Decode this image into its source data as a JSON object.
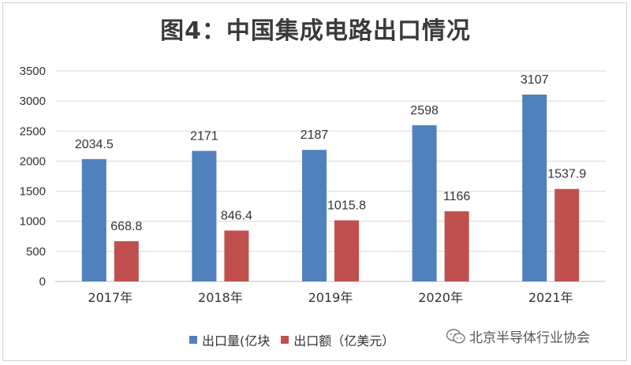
{
  "chart_data": {
    "type": "bar",
    "title": "图4：中国集成电路出口情况",
    "categories": [
      "2017年",
      "2018年",
      "2019年",
      "2020年",
      "2021年"
    ],
    "series": [
      {
        "name": "出口量(亿块",
        "color": "#4f81bd",
        "values": [
          2034.5,
          2171,
          2187,
          2598,
          3107
        ]
      },
      {
        "name": "出口额（亿美元）",
        "color": "#c0504d",
        "values": [
          668.8,
          846.4,
          1015.8,
          1166,
          1537.9
        ]
      }
    ],
    "ylim": [
      0,
      3500
    ],
    "yticks": [
      0,
      500,
      1000,
      1500,
      2000,
      2500,
      3000,
      3500
    ],
    "grid": true,
    "legend_position": "bottom"
  },
  "watermark": {
    "text": "北京半导体行业协会",
    "icon": "wechat-icon"
  }
}
